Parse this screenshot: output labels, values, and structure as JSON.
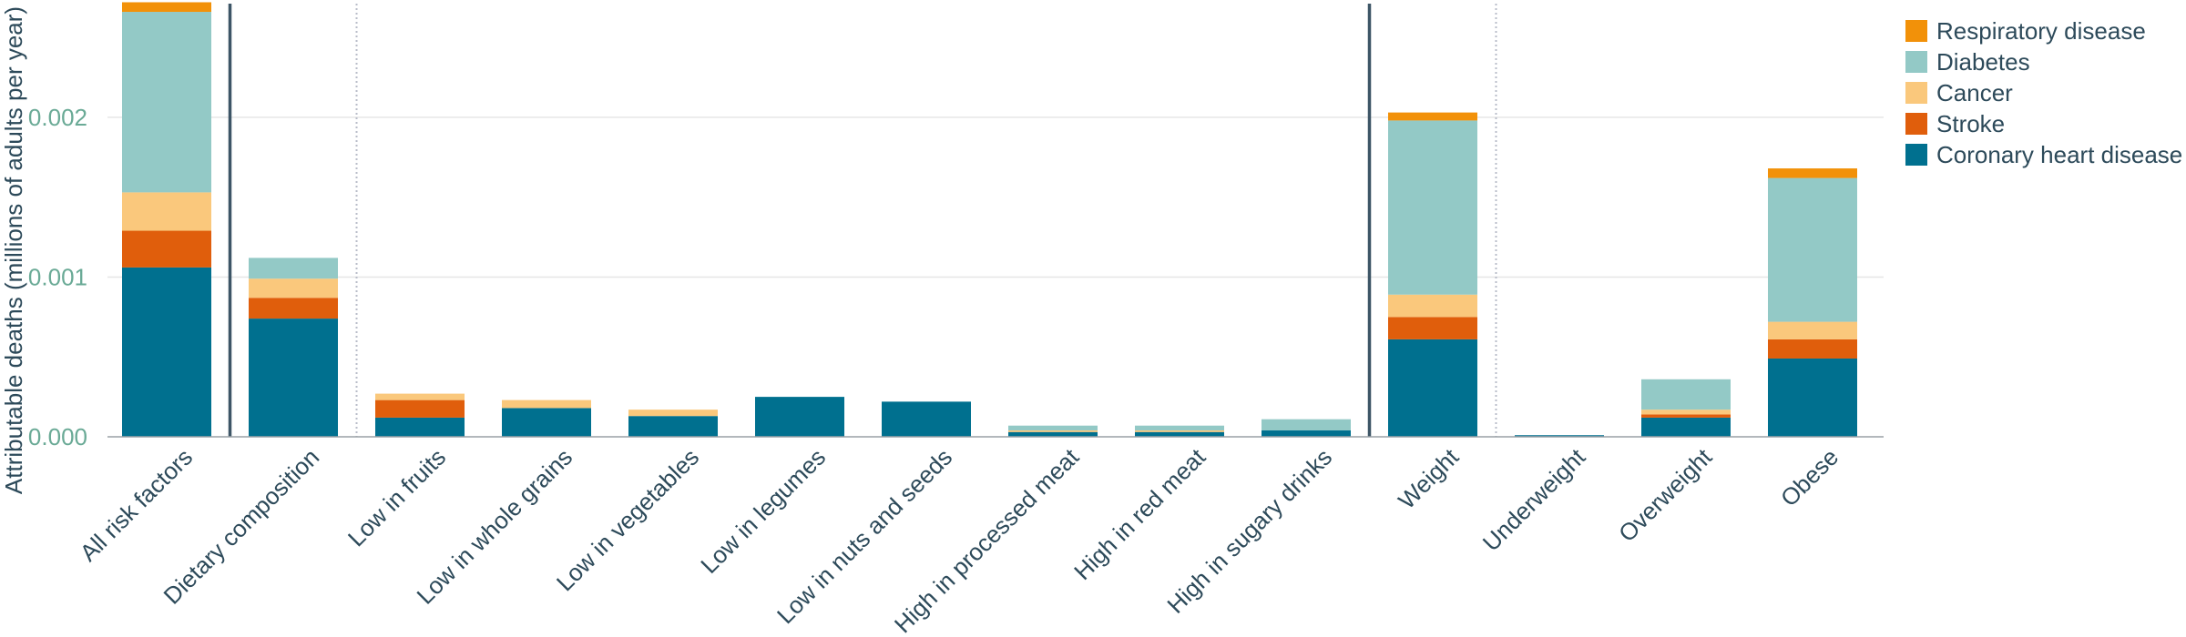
{
  "chart_data": {
    "type": "bar",
    "stacked": true,
    "ylabel": "Attributable deaths (millions of adults per year)",
    "ylim": [
      0,
      0.0027
    ],
    "yticks": [
      {
        "value": 0,
        "label": "0.000"
      },
      {
        "value": 0.001,
        "label": "0.001"
      },
      {
        "value": 0.002,
        "label": "0.002"
      }
    ],
    "grid": true,
    "legend_position": "top-right",
    "categories": [
      "All risk factors",
      "Dietary composition",
      "Low in fruits",
      "Low in whole grains",
      "Low in vegetables",
      "Low in legumes",
      "Low in nuts and seeds",
      "High in processed meat",
      "High in red meat",
      "High in sugary drinks",
      "Weight",
      "Underweight",
      "Overweight",
      "Obese"
    ],
    "series": [
      {
        "name": "Coronary heart disease",
        "color": "#00708f",
        "values": [
          0.00106,
          0.00074,
          0.00012,
          0.00018,
          0.00013,
          0.00025,
          0.00022,
          3e-05,
          3e-05,
          4e-05,
          0.00061,
          1e-05,
          0.00012,
          0.00049
        ]
      },
      {
        "name": "Stroke",
        "color": "#e05e0c",
        "values": [
          0.00023,
          0.00013,
          0.00011,
          0.0,
          0.0,
          0.0,
          0.0,
          0.0,
          0.0,
          0.0,
          0.00014,
          0.0,
          2e-05,
          0.00012
        ]
      },
      {
        "name": "Cancer",
        "color": "#fac87c",
        "values": [
          0.00024,
          0.00012,
          4e-05,
          5e-05,
          4e-05,
          0.0,
          0.0,
          1e-05,
          1e-05,
          0.0,
          0.00014,
          0.0,
          3e-05,
          0.00011
        ]
      },
      {
        "name": "Diabetes",
        "color": "#93c9c6",
        "values": [
          0.00113,
          0.00013,
          0.0,
          0.0,
          0.0,
          0.0,
          0.0,
          3e-05,
          3e-05,
          7e-05,
          0.00109,
          0.0,
          0.00019,
          0.0009
        ]
      },
      {
        "name": "Respiratory disease",
        "color": "#f29109",
        "values": [
          6e-05,
          0.0,
          0.0,
          0.0,
          0.0,
          0.0,
          0.0,
          0.0,
          0.0,
          0.0,
          5e-05,
          0.0,
          0.0,
          6e-05
        ]
      }
    ],
    "separators": [
      {
        "after": 0,
        "style": "solid"
      },
      {
        "after": 1,
        "style": "dotted"
      },
      {
        "after": 9,
        "style": "solid"
      },
      {
        "after": 10,
        "style": "dotted"
      }
    ]
  },
  "colors": {
    "axis_text": "#2d4a5a",
    "tick_text": "#6aaa96",
    "grid": "#e6e6e6",
    "separator_solid": "#3d5566",
    "separator_dotted": "#b8bcc8"
  }
}
